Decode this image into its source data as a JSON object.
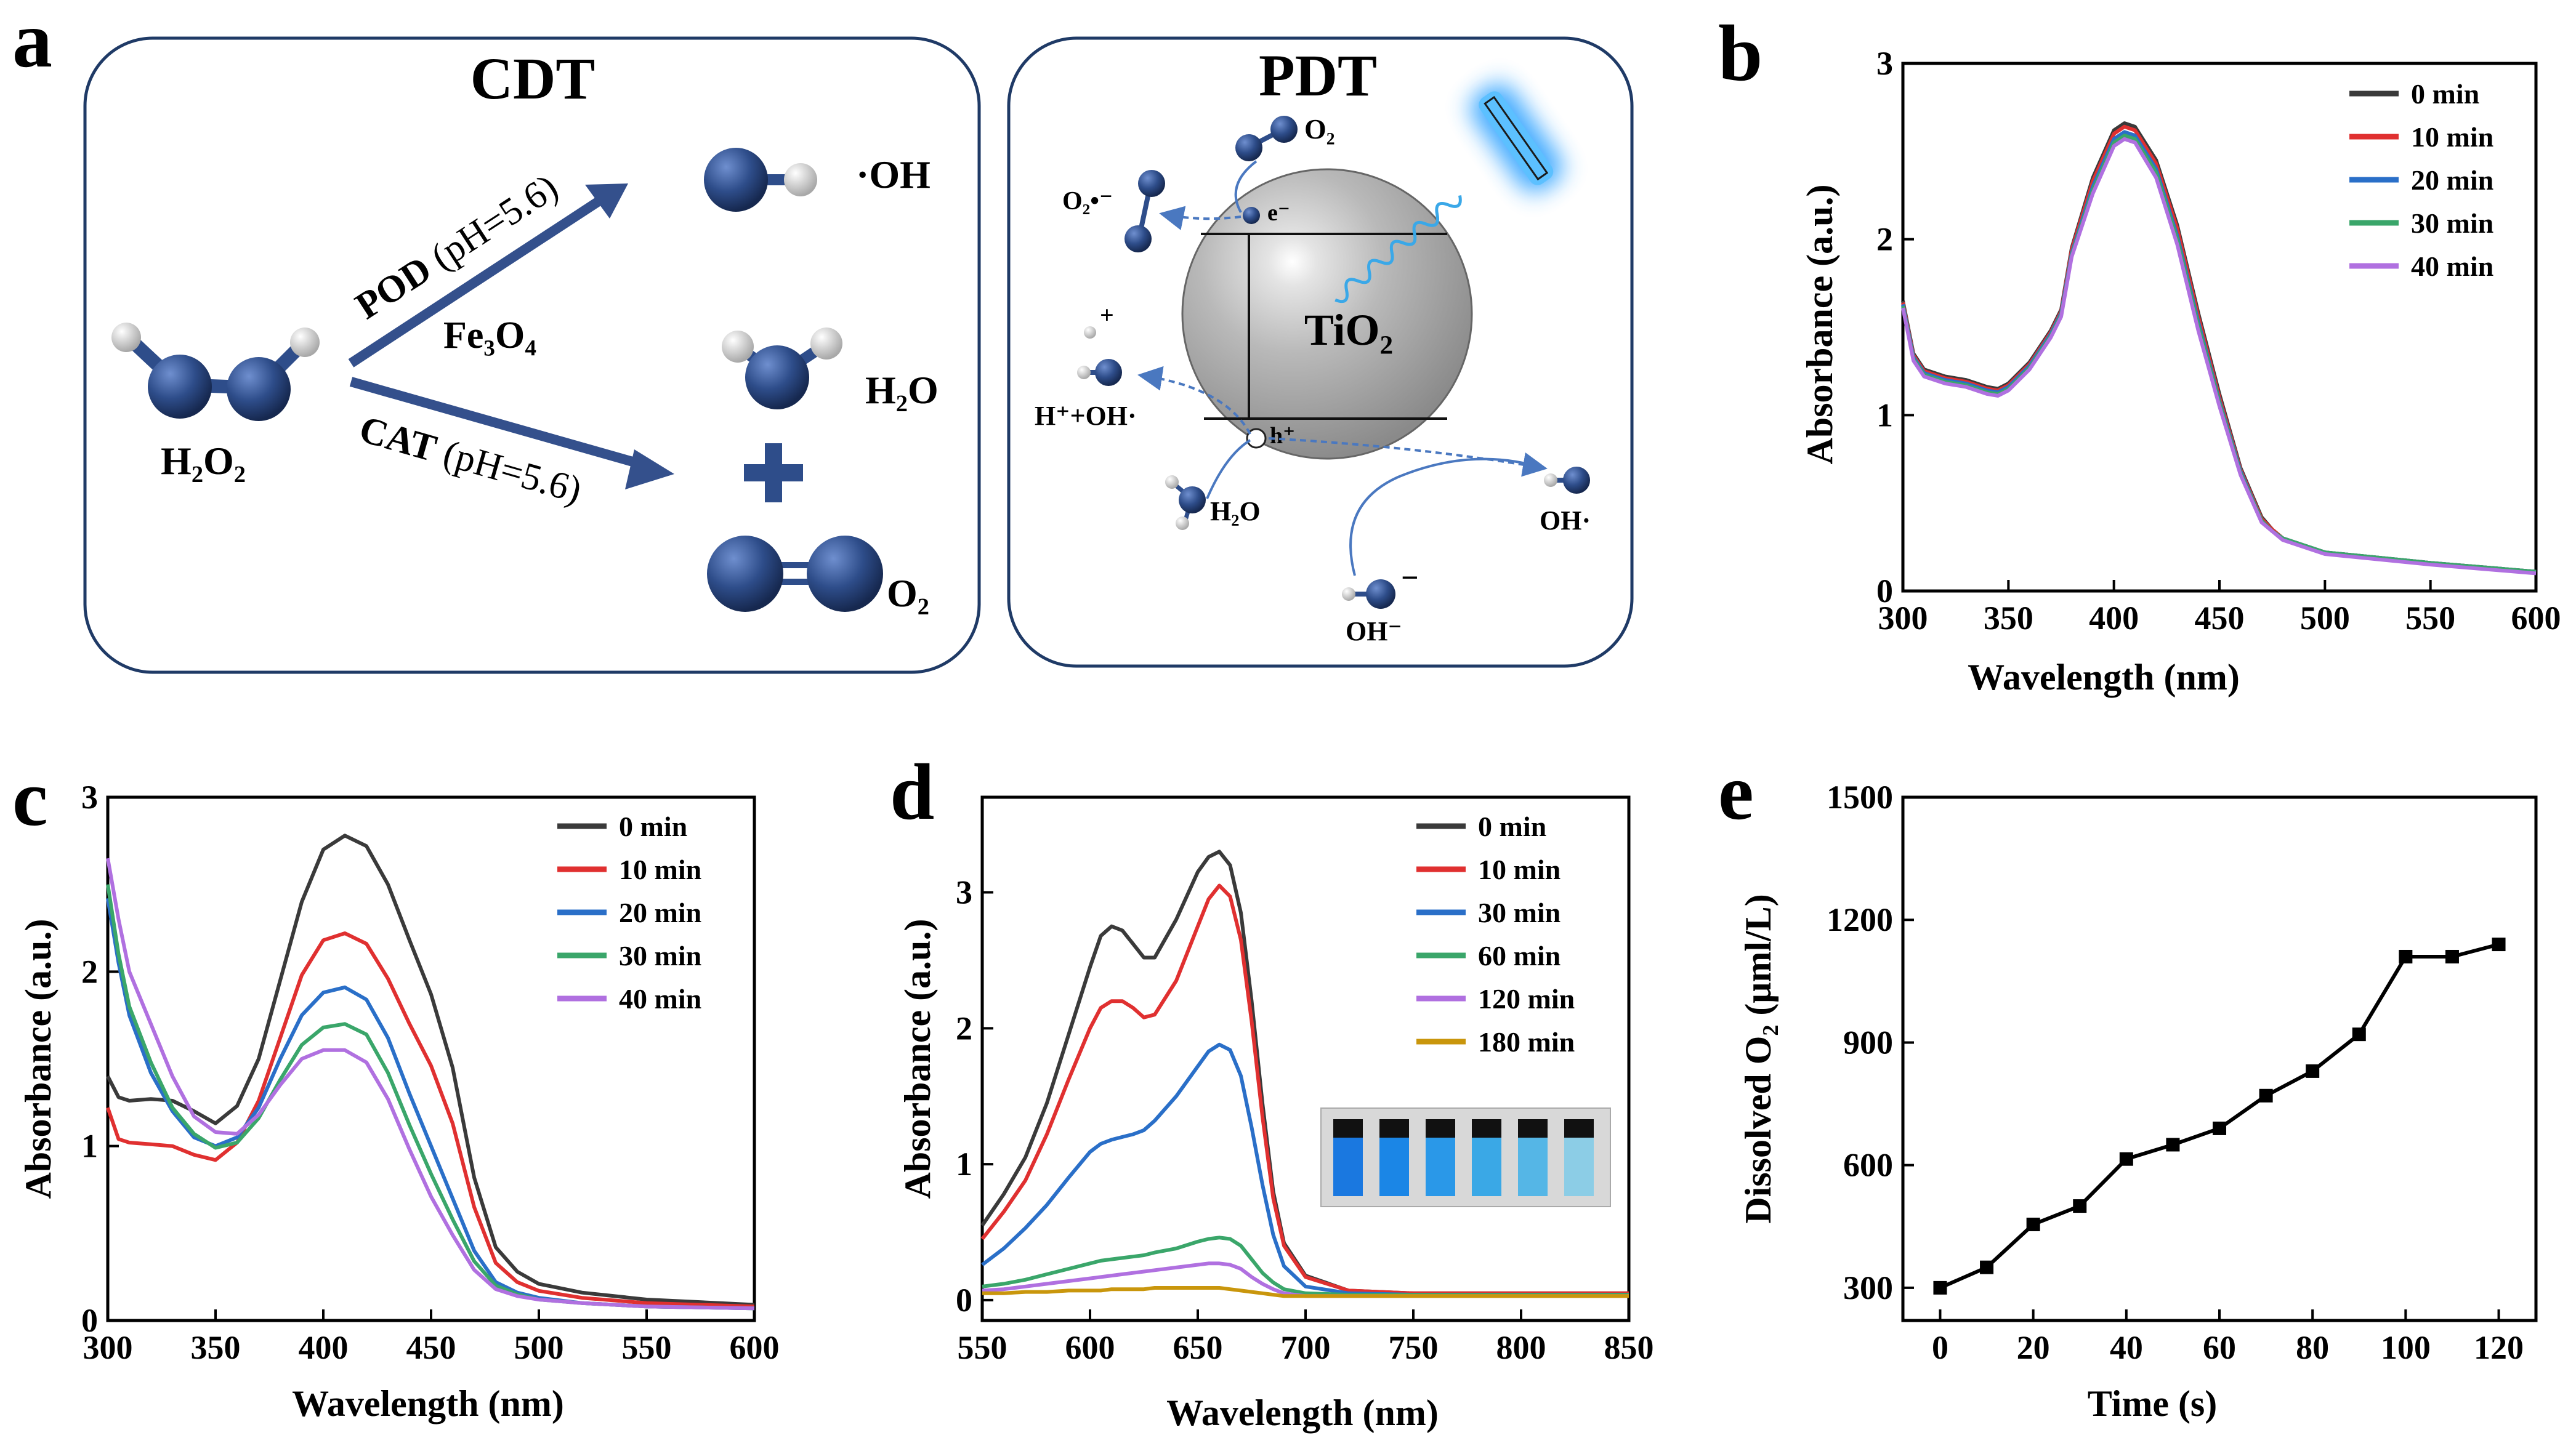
{
  "colors": {
    "series_b": [
      "#3a3a3a",
      "#e03030",
      "#2a6fc8",
      "#3aa66a",
      "#b070e0"
    ],
    "series_d": [
      "#3a3a3a",
      "#e03030",
      "#2a6fc8",
      "#3aa66a",
      "#b070e0",
      "#c9960c"
    ],
    "molecule": "#2e4d8a",
    "arrow": "#34508c",
    "frame": "#1f3a66",
    "glow": "#3ea8ff"
  },
  "panel_labels": {
    "a": "a",
    "b": "b",
    "c": "c",
    "d": "d",
    "e": "e"
  },
  "schematic": {
    "cdt": {
      "title": "CDT",
      "h2o2": "H₂O₂",
      "pod": "POD",
      "pod_ph": " (pH=5.6)",
      "catalyst": "Fe₃O₄",
      "cat": "CAT",
      "cat_ph": " (pH=5.6)",
      "oh": "·OH",
      "h2o": "H₂O",
      "o2": "O₂",
      "plus": "+"
    },
    "pdt": {
      "title": "PDT",
      "tio2": "TiO₂",
      "o2": "O₂",
      "o2_radical": "O₂•⁻",
      "electron": "e⁻",
      "hole": "h⁺",
      "proton": "+",
      "h_oh": "H⁺+OH·",
      "h2o": "H₂O",
      "oh_radical": "OH·",
      "oh_anion": "OH⁻",
      "minus": "−"
    }
  },
  "chart_data": [
    {
      "panel": "b",
      "type": "line",
      "xlabel": "Wavelength (nm)",
      "ylabel": "Absorbance (a.u.)",
      "xlim": [
        300,
        600
      ],
      "ylim": [
        0,
        3
      ],
      "xticks": [
        300,
        350,
        400,
        450,
        500,
        550,
        600
      ],
      "yticks": [
        0,
        1,
        2,
        3
      ],
      "legend": "top-right",
      "x": [
        300,
        305,
        310,
        320,
        330,
        340,
        345,
        350,
        360,
        370,
        375,
        380,
        390,
        400,
        405,
        410,
        420,
        430,
        440,
        450,
        460,
        470,
        475,
        480,
        500,
        550,
        600
      ],
      "series": [
        {
          "name": "0  min",
          "values": [
            1.65,
            1.35,
            1.26,
            1.22,
            1.2,
            1.16,
            1.15,
            1.18,
            1.3,
            1.48,
            1.6,
            1.95,
            2.35,
            2.62,
            2.66,
            2.64,
            2.45,
            2.08,
            1.58,
            1.12,
            0.7,
            0.42,
            0.35,
            0.3,
            0.22,
            0.16,
            0.11
          ]
        },
        {
          "name": "10 min",
          "values": [
            1.64,
            1.34,
            1.25,
            1.21,
            1.19,
            1.15,
            1.14,
            1.17,
            1.29,
            1.47,
            1.59,
            1.94,
            2.33,
            2.6,
            2.64,
            2.62,
            2.43,
            2.06,
            1.56,
            1.1,
            0.69,
            0.41,
            0.35,
            0.3,
            0.22,
            0.16,
            0.11
          ]
        },
        {
          "name": "20 min",
          "values": [
            1.63,
            1.33,
            1.24,
            1.2,
            1.18,
            1.14,
            1.13,
            1.16,
            1.28,
            1.46,
            1.58,
            1.92,
            2.3,
            2.57,
            2.61,
            2.59,
            2.4,
            2.02,
            1.53,
            1.08,
            0.68,
            0.4,
            0.34,
            0.3,
            0.22,
            0.16,
            0.11
          ]
        },
        {
          "name": "30 min",
          "values": [
            1.62,
            1.32,
            1.23,
            1.19,
            1.17,
            1.13,
            1.12,
            1.15,
            1.27,
            1.45,
            1.57,
            1.91,
            2.28,
            2.55,
            2.59,
            2.57,
            2.38,
            2.0,
            1.51,
            1.07,
            0.67,
            0.4,
            0.34,
            0.3,
            0.22,
            0.16,
            0.11
          ]
        },
        {
          "name": "40 min",
          "values": [
            1.61,
            1.31,
            1.22,
            1.18,
            1.16,
            1.12,
            1.11,
            1.14,
            1.26,
            1.44,
            1.56,
            1.9,
            2.26,
            2.53,
            2.57,
            2.55,
            2.35,
            1.97,
            1.48,
            1.05,
            0.66,
            0.39,
            0.34,
            0.29,
            0.21,
            0.15,
            0.1
          ]
        }
      ]
    },
    {
      "panel": "c",
      "type": "line",
      "xlabel": "Wavelength (nm)",
      "ylabel": "Absorbance (a.u.)",
      "xlim": [
        300,
        600
      ],
      "ylim": [
        0,
        3
      ],
      "xticks": [
        300,
        350,
        400,
        450,
        500,
        550,
        600
      ],
      "yticks": [
        0,
        1,
        2,
        3
      ],
      "legend": "top-right",
      "x": [
        300,
        305,
        310,
        320,
        330,
        340,
        350,
        360,
        370,
        380,
        390,
        400,
        410,
        420,
        430,
        440,
        450,
        460,
        470,
        480,
        490,
        500,
        520,
        550,
        600
      ],
      "series": [
        {
          "name": "0 min",
          "values": [
            1.4,
            1.28,
            1.26,
            1.27,
            1.26,
            1.2,
            1.13,
            1.23,
            1.5,
            1.95,
            2.4,
            2.7,
            2.78,
            2.72,
            2.5,
            2.18,
            1.87,
            1.45,
            0.82,
            0.42,
            0.28,
            0.21,
            0.16,
            0.12,
            0.09
          ]
        },
        {
          "name": "10 min",
          "values": [
            1.22,
            1.04,
            1.02,
            1.01,
            1.0,
            0.95,
            0.92,
            1.02,
            1.26,
            1.62,
            1.98,
            2.18,
            2.22,
            2.16,
            1.96,
            1.7,
            1.46,
            1.13,
            0.65,
            0.33,
            0.22,
            0.17,
            0.13,
            0.1,
            0.08
          ]
        },
        {
          "name": "20 min",
          "values": [
            2.42,
            2.05,
            1.75,
            1.42,
            1.2,
            1.05,
            1.0,
            1.05,
            1.22,
            1.5,
            1.75,
            1.88,
            1.91,
            1.84,
            1.62,
            1.3,
            1.0,
            0.7,
            0.4,
            0.22,
            0.16,
            0.13,
            0.1,
            0.08,
            0.07
          ]
        },
        {
          "name": "30 min",
          "values": [
            2.5,
            2.1,
            1.8,
            1.48,
            1.22,
            1.07,
            0.99,
            1.02,
            1.16,
            1.38,
            1.58,
            1.68,
            1.7,
            1.64,
            1.42,
            1.12,
            0.84,
            0.58,
            0.34,
            0.2,
            0.15,
            0.12,
            0.1,
            0.08,
            0.07
          ]
        },
        {
          "name": "40 min",
          "values": [
            2.65,
            2.3,
            2.0,
            1.7,
            1.4,
            1.17,
            1.08,
            1.07,
            1.18,
            1.35,
            1.5,
            1.55,
            1.55,
            1.48,
            1.27,
            0.98,
            0.71,
            0.49,
            0.29,
            0.18,
            0.14,
            0.12,
            0.1,
            0.08,
            0.07
          ]
        }
      ]
    },
    {
      "panel": "d",
      "type": "line",
      "xlabel": "Wavelength (nm)",
      "ylabel": "Absorbance (a.u.)",
      "xlim": [
        550,
        850
      ],
      "ylim": [
        -0.15,
        3.7
      ],
      "xticks": [
        550,
        600,
        650,
        700,
        750,
        800,
        850
      ],
      "yticks": [
        0,
        1,
        2,
        3
      ],
      "legend": "top-right",
      "x": [
        550,
        560,
        570,
        580,
        590,
        600,
        605,
        610,
        615,
        620,
        625,
        630,
        640,
        650,
        655,
        660,
        665,
        670,
        675,
        680,
        685,
        690,
        700,
        720,
        750,
        800,
        850
      ],
      "series": [
        {
          "name": "0 min",
          "values": [
            0.55,
            0.78,
            1.05,
            1.45,
            1.95,
            2.45,
            2.68,
            2.75,
            2.72,
            2.62,
            2.52,
            2.52,
            2.8,
            3.15,
            3.26,
            3.3,
            3.2,
            2.85,
            2.2,
            1.45,
            0.8,
            0.42,
            0.18,
            0.07,
            0.05,
            0.05,
            0.05
          ]
        },
        {
          "name": "10 min",
          "values": [
            0.45,
            0.65,
            0.88,
            1.22,
            1.62,
            2.0,
            2.15,
            2.2,
            2.2,
            2.15,
            2.08,
            2.1,
            2.35,
            2.75,
            2.95,
            3.05,
            2.97,
            2.65,
            2.05,
            1.35,
            0.75,
            0.4,
            0.17,
            0.07,
            0.05,
            0.05,
            0.05
          ]
        },
        {
          "name": "30 min",
          "values": [
            0.26,
            0.38,
            0.53,
            0.7,
            0.9,
            1.09,
            1.15,
            1.18,
            1.2,
            1.22,
            1.25,
            1.32,
            1.5,
            1.72,
            1.83,
            1.88,
            1.84,
            1.65,
            1.27,
            0.85,
            0.48,
            0.25,
            0.1,
            0.05,
            0.04,
            0.04,
            0.04
          ]
        },
        {
          "name": "60 min",
          "values": [
            0.1,
            0.12,
            0.15,
            0.19,
            0.23,
            0.27,
            0.29,
            0.3,
            0.31,
            0.32,
            0.33,
            0.35,
            0.38,
            0.43,
            0.45,
            0.46,
            0.45,
            0.4,
            0.3,
            0.2,
            0.13,
            0.08,
            0.05,
            0.04,
            0.04,
            0.04,
            0.04
          ]
        },
        {
          "name": "120 min",
          "values": [
            0.07,
            0.08,
            0.1,
            0.12,
            0.14,
            0.16,
            0.17,
            0.18,
            0.19,
            0.2,
            0.21,
            0.22,
            0.24,
            0.26,
            0.27,
            0.27,
            0.26,
            0.23,
            0.17,
            0.12,
            0.08,
            0.05,
            0.03,
            0.03,
            0.03,
            0.03,
            0.03
          ]
        },
        {
          "name": "180 min",
          "values": [
            0.05,
            0.05,
            0.06,
            0.06,
            0.07,
            0.07,
            0.07,
            0.08,
            0.08,
            0.08,
            0.08,
            0.09,
            0.09,
            0.09,
            0.09,
            0.09,
            0.08,
            0.07,
            0.06,
            0.05,
            0.04,
            0.03,
            0.03,
            0.03,
            0.03,
            0.03,
            0.03
          ]
        }
      ]
    },
    {
      "panel": "e",
      "type": "line",
      "xlabel": "Time (s)",
      "ylabel": "Dissolved O₂ (μml/L)",
      "xlim": [
        -8,
        128
      ],
      "ylim": [
        220,
        1500
      ],
      "xticks": [
        0,
        20,
        40,
        60,
        80,
        100,
        120
      ],
      "yticks": [
        300,
        600,
        900,
        1200,
        1500
      ],
      "x": [
        0,
        10,
        20,
        30,
        40,
        50,
        60,
        70,
        80,
        90,
        100,
        110,
        120
      ],
      "values": [
        300,
        350,
        455,
        500,
        615,
        650,
        690,
        770,
        830,
        920,
        1110,
        1110,
        1140
      ],
      "marker": "square"
    }
  ]
}
